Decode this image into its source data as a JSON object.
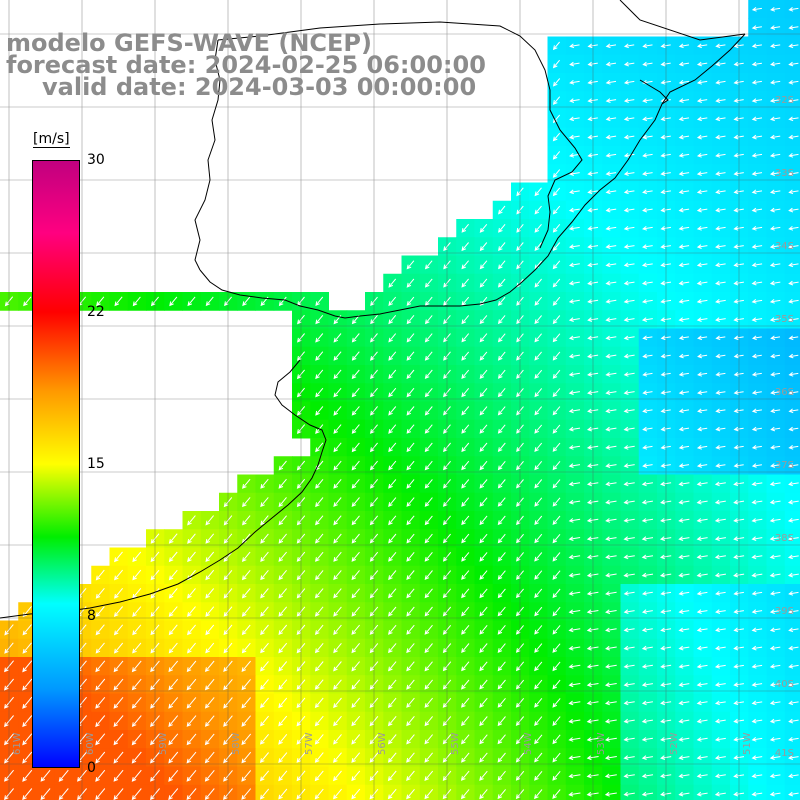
{
  "title": {
    "model": "modelo GEFS-WAVE (NCEP)",
    "forecast": "forecast date: 2024-02-25 06:00:00",
    "valid": "valid date: 2024-03-03 00:00:00"
  },
  "colorbar": {
    "unit": "[m/s]",
    "min": 0,
    "max": 30,
    "ticks": [
      "30",
      "22",
      "15",
      "8",
      "0"
    ],
    "tick_values": [
      30,
      22,
      15,
      8,
      0
    ]
  },
  "lat_labels": [
    "32S",
    "33S",
    "34S",
    "35S",
    "36S",
    "37S",
    "38S",
    "39S",
    "40S",
    "41S"
  ],
  "lon_labels": [
    "61W",
    "60W",
    "59W",
    "58W",
    "57W",
    "56W",
    "55W",
    "54W",
    "53W",
    "52W",
    "51W"
  ],
  "field": {
    "variable": "wind speed",
    "unit": "m/s",
    "direction": "from northeast toward southwest",
    "typical_range": [
      7,
      20
    ]
  },
  "colors": {
    "land": "#ffffff",
    "coast": "#000000",
    "grid": "#555555",
    "title": "#8c8c8c"
  }
}
